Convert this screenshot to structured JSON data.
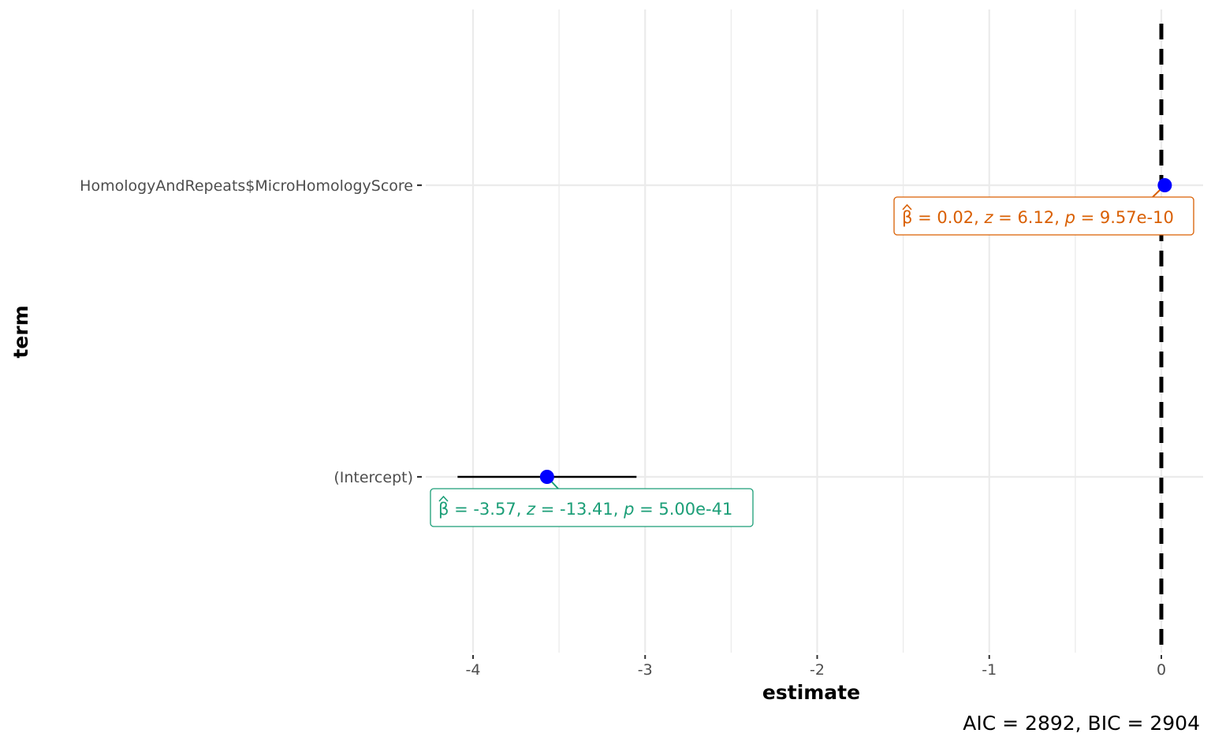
{
  "chart_data": {
    "type": "scatter",
    "title": "",
    "xlabel": "estimate",
    "ylabel": "term",
    "xlim": [
      -4.35,
      0.25
    ],
    "x_ticks": [
      -4,
      -3,
      -2,
      -1,
      0
    ],
    "x_tick_labels": [
      "-4",
      "-3",
      "-2",
      "-1",
      "0"
    ],
    "minor_x_gridlines": [
      -3.5,
      -2.5,
      -1.5,
      -0.5
    ],
    "categories": [
      "(Intercept)",
      "HomologyAndRepeats$MicroHomologyScore"
    ],
    "grid": true,
    "reference_line": {
      "x": 0,
      "style": "dashed",
      "color": "#000000"
    },
    "point_color": "#0000ff",
    "errorbar_color": "#000000",
    "terms": [
      {
        "term": "HomologyAndRepeats$MicroHomologyScore",
        "estimate": 0.02,
        "conf_low": 0.014,
        "conf_high": 0.026,
        "label_color": "#d95f02",
        "label": {
          "beta_symbol": "β",
          "rest_a": " = 0.02, ",
          "z_symbol": "z",
          "rest_b": " = 6.12, ",
          "p_symbol": "p",
          "rest_c": " = 9.57e-10"
        }
      },
      {
        "term": "(Intercept)",
        "estimate": -3.57,
        "conf_low": -4.09,
        "conf_high": -3.05,
        "label_color": "#1b9e77",
        "label": {
          "beta_symbol": "β",
          "rest_a": " = -3.57, ",
          "z_symbol": "z",
          "rest_b": " = -13.41, ",
          "p_symbol": "p",
          "rest_c": " = 5.00e-41"
        }
      }
    ],
    "caption": "AIC = 2892, BIC = 2904"
  }
}
